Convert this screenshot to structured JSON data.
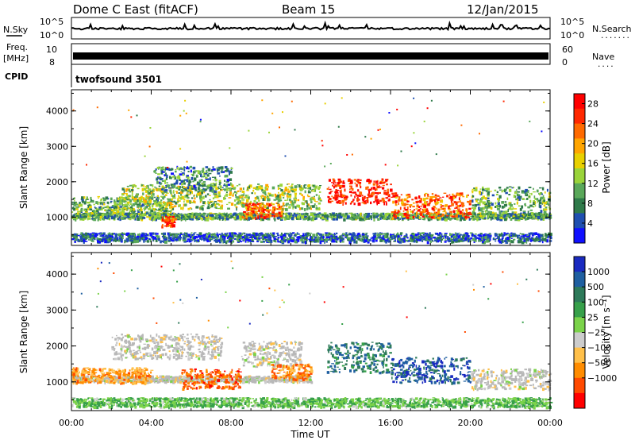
{
  "header": {
    "station": "Dome C East (fitACF)",
    "beam": "Beam 15",
    "date": "12/Jan/2015"
  },
  "strip_labels": {
    "nsky": "N.Sky",
    "nsearch": "N.Search",
    "nsearch_dots": ".......",
    "freq": "Freq.",
    "freq_unit": "[MHz]",
    "nave": "Nave",
    "nave_dots": "....",
    "cpid": "CPID",
    "cpid_value": "twofsound 3501",
    "noise_left_hi": "10^5",
    "noise_left_lo": "10^0",
    "noise_right_hi": "10^5",
    "noise_right_lo": "10^0",
    "freq_left_hi": "10",
    "freq_left_lo": "8",
    "nave_right_hi": "60",
    "nave_right_lo": "0"
  },
  "colors": {
    "power_scale": [
      "#1010ff",
      "#1f4fb0",
      "#2f7a4a",
      "#5aa85a",
      "#9ad43a",
      "#e8d000",
      "#ffa500",
      "#ff6a00",
      "#ff2800",
      "#ff0000"
    ],
    "velocity_scale": [
      "#ff0000",
      "#ff4a00",
      "#ff8c00",
      "#ffc04a",
      "#cccccc",
      "#7bd34a",
      "#37a04a",
      "#2e7a5a",
      "#1f5fa0",
      "#1a2ac0"
    ],
    "ground_scatter": "#b8b8b8"
  },
  "chart_data": [
    {
      "type": "heatmap",
      "title": "",
      "xlabel": "",
      "ylabel": "Slant Range [km]",
      "x_ticks": [
        "00:00",
        "04:00",
        "08:00",
        "12:00",
        "16:00",
        "20:00",
        "00:00"
      ],
      "y_ticks": [
        "1000",
        "2000",
        "3000",
        "4000"
      ],
      "xlim_hours": [
        0,
        24
      ],
      "ylim_km": [
        200,
        4600
      ],
      "colorbar": {
        "label": "Power [dB]",
        "ticks": [
          "4",
          "8",
          "12",
          "16",
          "20",
          "24",
          "28"
        ],
        "range": [
          0,
          30
        ]
      },
      "scatter_bands": [
        {
          "t0": 0.0,
          "t1": 24.0,
          "range_km": 1050,
          "width_km": 120,
          "level": 0.3
        },
        {
          "t0": 0.0,
          "t1": 5.0,
          "range_km": 1350,
          "width_km": 350,
          "level": 0.35
        },
        {
          "t0": 2.5,
          "t1": 12.5,
          "range_km": 1600,
          "width_km": 500,
          "level": 0.45
        },
        {
          "t0": 4.0,
          "t1": 8.0,
          "range_km": 2100,
          "width_km": 500,
          "level": 0.25
        },
        {
          "t0": 4.5,
          "t1": 5.2,
          "range_km": 900,
          "width_km": 200,
          "level": 0.85
        },
        {
          "t0": 8.5,
          "t1": 10.5,
          "range_km": 1200,
          "width_km": 300,
          "level": 0.8
        },
        {
          "t0": 12.8,
          "t1": 16.0,
          "range_km": 1750,
          "width_km": 500,
          "level": 0.95
        },
        {
          "t0": 16.0,
          "t1": 20.0,
          "range_km": 1350,
          "width_km": 500,
          "level": 0.8
        },
        {
          "t0": 20.0,
          "t1": 24.0,
          "range_km": 1450,
          "width_km": 600,
          "level": 0.35
        },
        {
          "t0": 0.0,
          "t1": 24.0,
          "range_km": 450,
          "width_km": 180,
          "level": 0.15
        }
      ]
    },
    {
      "type": "heatmap",
      "title": "",
      "xlabel": "Time UT",
      "ylabel": "Slant Range [km]",
      "x_ticks": [
        "00:00",
        "04:00",
        "08:00",
        "12:00",
        "16:00",
        "20:00",
        "00:00"
      ],
      "y_ticks": [
        "1000",
        "2000",
        "3000",
        "4000"
      ],
      "xlim_hours": [
        0,
        24
      ],
      "ylim_km": [
        200,
        4600
      ],
      "colorbar": {
        "label": "Velocity [m s⁻¹]",
        "ticks": [
          "1000",
          "500",
          "100",
          "25",
          "−25",
          "−100",
          "−500",
          "−1000"
        ]
      },
      "scatter_bands": [
        {
          "t0": 0.0,
          "t1": 12.0,
          "range_km": 1100,
          "width_km": 120,
          "level": 0.45
        },
        {
          "t0": 0.0,
          "t1": 4.0,
          "range_km": 1200,
          "width_km": 300,
          "level": 0.25
        },
        {
          "t0": 2.0,
          "t1": 7.5,
          "range_km": 2000,
          "width_km": 500,
          "level": 0.45
        },
        {
          "t0": 5.5,
          "t1": 8.5,
          "range_km": 1100,
          "width_km": 400,
          "level": 0.15
        },
        {
          "t0": 8.5,
          "t1": 11.5,
          "range_km": 1800,
          "width_km": 500,
          "level": 0.42
        },
        {
          "t0": 10.0,
          "t1": 12.0,
          "range_km": 1300,
          "width_km": 300,
          "level": 0.22
        },
        {
          "t0": 12.8,
          "t1": 16.0,
          "range_km": 1700,
          "width_km": 600,
          "level": 0.8
        },
        {
          "t0": 16.0,
          "t1": 20.0,
          "range_km": 1350,
          "width_km": 500,
          "level": 0.9
        },
        {
          "t0": 20.0,
          "t1": 24.0,
          "range_km": 1100,
          "width_km": 400,
          "level": 0.45
        },
        {
          "t0": 0.0,
          "t1": 24.0,
          "range_km": 450,
          "width_km": 180,
          "level": 0.6
        }
      ]
    }
  ]
}
